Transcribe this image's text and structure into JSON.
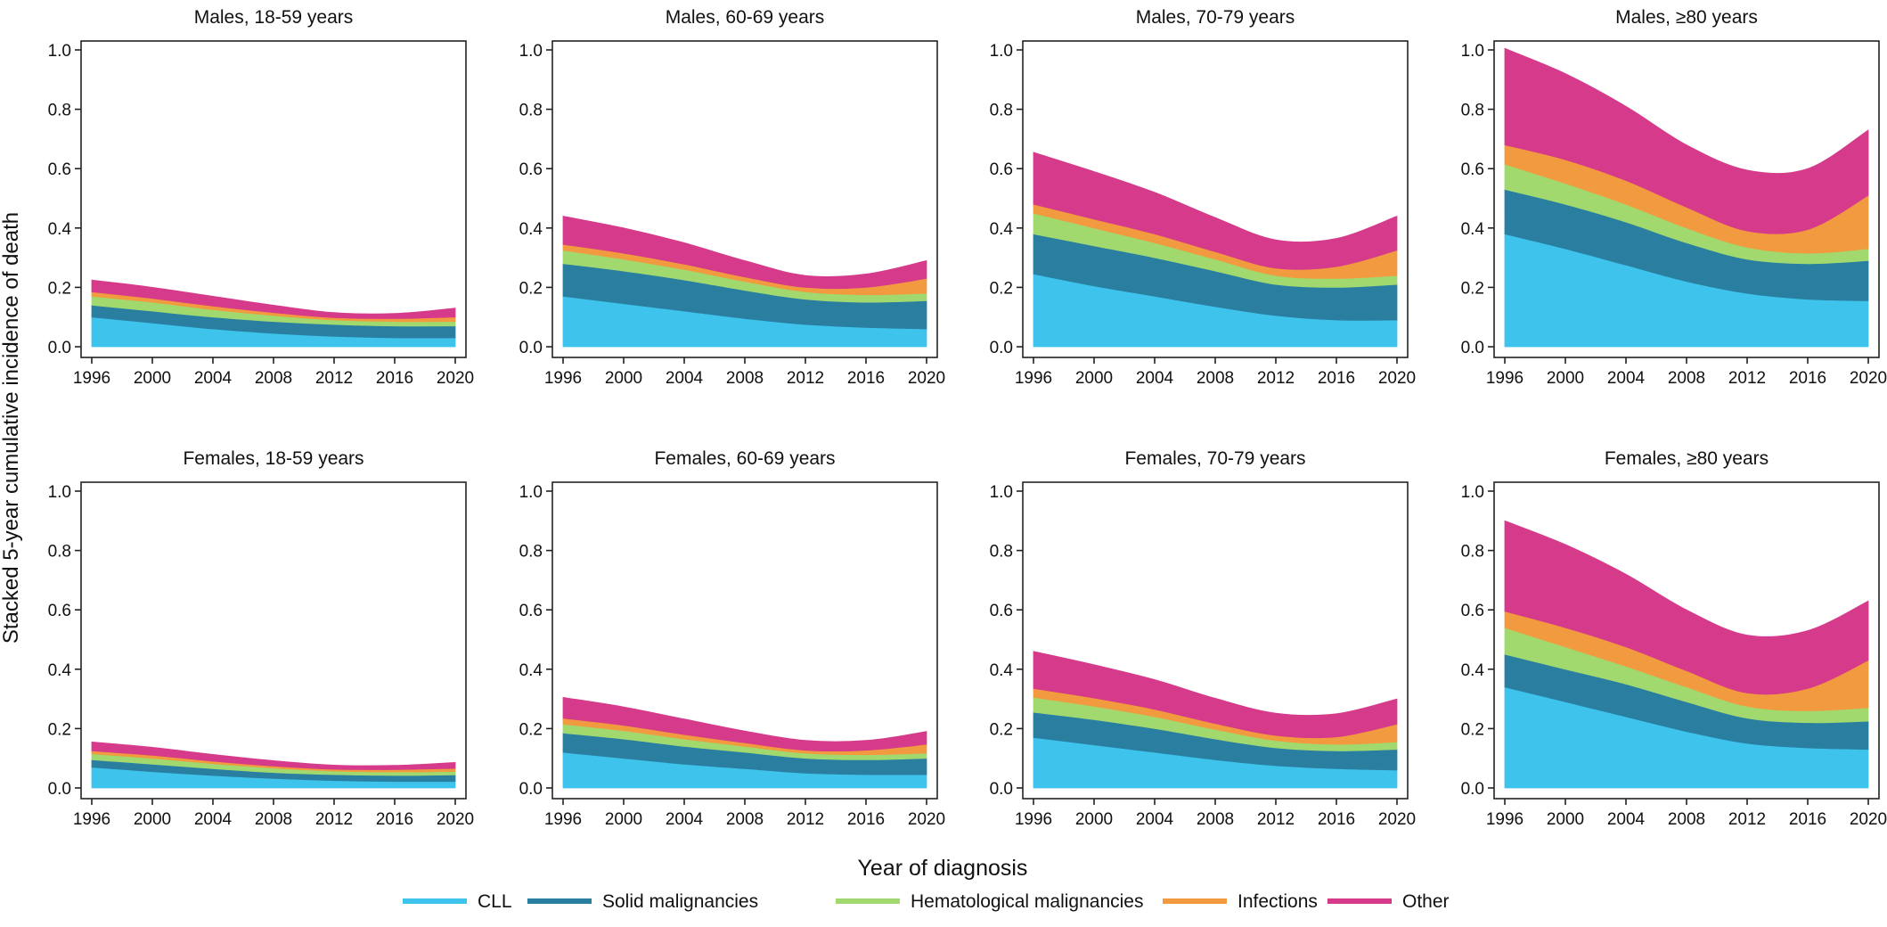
{
  "figure": {
    "ylabel": "Stacked 5-year cumulative incidence of death",
    "xlabel": "Year of diagnosis"
  },
  "legend": {
    "items": [
      {
        "label": "CLL",
        "color": "#3ec3ec"
      },
      {
        "label": "Solid malignancies",
        "color": "#2a7fa0"
      },
      {
        "label": "Hematological malignancies",
        "color": "#a2d96f"
      },
      {
        "label": "Infections",
        "color": "#f29a3f"
      },
      {
        "label": "Other",
        "color": "#d63a8a"
      }
    ]
  },
  "chart_data": [
    {
      "type": "area",
      "title": "Males, 18-59 years",
      "x": [
        1996,
        2000,
        2004,
        2008,
        2012,
        2016,
        2020
      ],
      "xticks": [
        "1996",
        "2000",
        "2004",
        "2008",
        "2012",
        "2016",
        "2020"
      ],
      "ylim": [
        0,
        1.0
      ],
      "yticks": [
        "0.0",
        "0.2",
        "0.4",
        "0.6",
        "0.8",
        "1.0"
      ],
      "series": [
        {
          "name": "CLL",
          "values": [
            0.1,
            0.08,
            0.06,
            0.045,
            0.035,
            0.03,
            0.03
          ]
        },
        {
          "name": "Solid malignancies",
          "values": [
            0.04,
            0.04,
            0.04,
            0.04,
            0.04,
            0.04,
            0.04
          ]
        },
        {
          "name": "Hematological malignancies",
          "values": [
            0.03,
            0.03,
            0.025,
            0.02,
            0.015,
            0.015,
            0.015
          ]
        },
        {
          "name": "Infections",
          "values": [
            0.015,
            0.013,
            0.012,
            0.01,
            0.008,
            0.01,
            0.015
          ]
        },
        {
          "name": "Other",
          "values": [
            0.04,
            0.037,
            0.033,
            0.025,
            0.017,
            0.017,
            0.03
          ]
        }
      ]
    },
    {
      "type": "area",
      "title": "Males, 60-69 years",
      "x": [
        1996,
        2000,
        2004,
        2008,
        2012,
        2016,
        2020
      ],
      "xticks": [
        "1996",
        "2000",
        "2004",
        "2008",
        "2012",
        "2016",
        "2020"
      ],
      "ylim": [
        0,
        1.0
      ],
      "yticks": [
        "0.0",
        "0.2",
        "0.4",
        "0.6",
        "0.8",
        "1.0"
      ],
      "series": [
        {
          "name": "CLL",
          "values": [
            0.17,
            0.145,
            0.12,
            0.095,
            0.075,
            0.065,
            0.06
          ]
        },
        {
          "name": "Solid malignancies",
          "values": [
            0.11,
            0.11,
            0.105,
            0.095,
            0.085,
            0.085,
            0.095
          ]
        },
        {
          "name": "Hematological malignancies",
          "values": [
            0.045,
            0.04,
            0.035,
            0.03,
            0.025,
            0.025,
            0.025
          ]
        },
        {
          "name": "Infections",
          "values": [
            0.02,
            0.02,
            0.018,
            0.015,
            0.015,
            0.025,
            0.05
          ]
        },
        {
          "name": "Other",
          "values": [
            0.095,
            0.085,
            0.072,
            0.055,
            0.04,
            0.045,
            0.06
          ]
        }
      ]
    },
    {
      "type": "area",
      "title": "Males, 70-79 years",
      "x": [
        1996,
        2000,
        2004,
        2008,
        2012,
        2016,
        2020
      ],
      "xticks": [
        "1996",
        "2000",
        "2004",
        "2008",
        "2012",
        "2016",
        "2020"
      ],
      "ylim": [
        0,
        1.0
      ],
      "yticks": [
        "0.0",
        "0.2",
        "0.4",
        "0.6",
        "0.8",
        "1.0"
      ],
      "series": [
        {
          "name": "CLL",
          "values": [
            0.245,
            0.205,
            0.17,
            0.135,
            0.105,
            0.09,
            0.09
          ]
        },
        {
          "name": "Solid malignancies",
          "values": [
            0.135,
            0.135,
            0.13,
            0.12,
            0.105,
            0.11,
            0.12
          ]
        },
        {
          "name": "Hematological malignancies",
          "values": [
            0.07,
            0.06,
            0.05,
            0.04,
            0.03,
            0.03,
            0.03
          ]
        },
        {
          "name": "Infections",
          "values": [
            0.03,
            0.03,
            0.03,
            0.025,
            0.025,
            0.04,
            0.085
          ]
        },
        {
          "name": "Other",
          "values": [
            0.175,
            0.16,
            0.14,
            0.115,
            0.095,
            0.095,
            0.115
          ]
        }
      ]
    },
    {
      "type": "area",
      "title": "Males, ≥80 years",
      "x": [
        1996,
        2000,
        2004,
        2008,
        2012,
        2016,
        2020
      ],
      "xticks": [
        "1996",
        "2000",
        "2004",
        "2008",
        "2012",
        "2016",
        "2020"
      ],
      "ylim": [
        0,
        1.0
      ],
      "yticks": [
        "0.0",
        "0.2",
        "0.4",
        "0.6",
        "0.8",
        "1.0"
      ],
      "series": [
        {
          "name": "CLL",
          "values": [
            0.38,
            0.33,
            0.275,
            0.22,
            0.18,
            0.16,
            0.155
          ]
        },
        {
          "name": "Solid malignancies",
          "values": [
            0.15,
            0.15,
            0.145,
            0.13,
            0.115,
            0.12,
            0.135
          ]
        },
        {
          "name": "Hematological malignancies",
          "values": [
            0.085,
            0.07,
            0.06,
            0.05,
            0.04,
            0.035,
            0.04
          ]
        },
        {
          "name": "Infections",
          "values": [
            0.065,
            0.08,
            0.08,
            0.07,
            0.055,
            0.08,
            0.18
          ]
        },
        {
          "name": "Other",
          "values": [
            0.325,
            0.29,
            0.25,
            0.21,
            0.205,
            0.205,
            0.22
          ]
        }
      ]
    },
    {
      "type": "area",
      "title": "Females, 18-59 years",
      "x": [
        1996,
        2000,
        2004,
        2008,
        2012,
        2016,
        2020
      ],
      "xticks": [
        "1996",
        "2000",
        "2004",
        "2008",
        "2012",
        "2016",
        "2020"
      ],
      "ylim": [
        0,
        1.0
      ],
      "yticks": [
        "0.0",
        "0.2",
        "0.4",
        "0.6",
        "0.8",
        "1.0"
      ],
      "series": [
        {
          "name": "CLL",
          "values": [
            0.07,
            0.055,
            0.042,
            0.032,
            0.025,
            0.022,
            0.022
          ]
        },
        {
          "name": "Solid malignancies",
          "values": [
            0.025,
            0.025,
            0.023,
            0.02,
            0.02,
            0.02,
            0.022
          ]
        },
        {
          "name": "Hematological malignancies",
          "values": [
            0.02,
            0.02,
            0.017,
            0.015,
            0.012,
            0.012,
            0.012
          ]
        },
        {
          "name": "Infections",
          "values": [
            0.01,
            0.01,
            0.008,
            0.007,
            0.006,
            0.008,
            0.01
          ]
        },
        {
          "name": "Other",
          "values": [
            0.03,
            0.027,
            0.023,
            0.018,
            0.014,
            0.014,
            0.02
          ]
        }
      ]
    },
    {
      "type": "area",
      "title": "Females, 60-69 years",
      "x": [
        1996,
        2000,
        2004,
        2008,
        2012,
        2016,
        2020
      ],
      "xticks": [
        "1996",
        "2000",
        "2004",
        "2008",
        "2012",
        "2016",
        "2020"
      ],
      "ylim": [
        0,
        1.0
      ],
      "yticks": [
        "0.0",
        "0.2",
        "0.4",
        "0.6",
        "0.8",
        "1.0"
      ],
      "series": [
        {
          "name": "CLL",
          "values": [
            0.12,
            0.1,
            0.08,
            0.065,
            0.05,
            0.045,
            0.045
          ]
        },
        {
          "name": "Solid malignancies",
          "values": [
            0.065,
            0.065,
            0.06,
            0.055,
            0.05,
            0.05,
            0.055
          ]
        },
        {
          "name": "Hematological malignancies",
          "values": [
            0.03,
            0.028,
            0.025,
            0.02,
            0.017,
            0.017,
            0.017
          ]
        },
        {
          "name": "Infections",
          "values": [
            0.02,
            0.018,
            0.015,
            0.012,
            0.01,
            0.015,
            0.03
          ]
        },
        {
          "name": "Other",
          "values": [
            0.07,
            0.062,
            0.052,
            0.04,
            0.033,
            0.033,
            0.043
          ]
        }
      ]
    },
    {
      "type": "area",
      "title": "Females, 70-79 years",
      "x": [
        1996,
        2000,
        2004,
        2008,
        2012,
        2016,
        2020
      ],
      "xticks": [
        "1996",
        "2000",
        "2004",
        "2008",
        "2012",
        "2016",
        "2020"
      ],
      "ylim": [
        0,
        1.0
      ],
      "yticks": [
        "0.0",
        "0.2",
        "0.4",
        "0.6",
        "0.8",
        "1.0"
      ],
      "series": [
        {
          "name": "CLL",
          "values": [
            0.17,
            0.145,
            0.12,
            0.095,
            0.075,
            0.065,
            0.06
          ]
        },
        {
          "name": "Solid malignancies",
          "values": [
            0.085,
            0.085,
            0.08,
            0.07,
            0.06,
            0.06,
            0.07
          ]
        },
        {
          "name": "Hematological malignancies",
          "values": [
            0.05,
            0.045,
            0.04,
            0.032,
            0.025,
            0.022,
            0.025
          ]
        },
        {
          "name": "Infections",
          "values": [
            0.03,
            0.028,
            0.025,
            0.02,
            0.017,
            0.025,
            0.06
          ]
        },
        {
          "name": "Other",
          "values": [
            0.125,
            0.112,
            0.1,
            0.085,
            0.075,
            0.078,
            0.085
          ]
        }
      ]
    },
    {
      "type": "area",
      "title": "Females, ≥80 years",
      "x": [
        1996,
        2000,
        2004,
        2008,
        2012,
        2016,
        2020
      ],
      "xticks": [
        "1996",
        "2000",
        "2004",
        "2008",
        "2012",
        "2016",
        "2020"
      ],
      "ylim": [
        0,
        1.0
      ],
      "yticks": [
        "0.0",
        "0.2",
        "0.4",
        "0.6",
        "0.8",
        "1.0"
      ],
      "series": [
        {
          "name": "CLL",
          "values": [
            0.34,
            0.29,
            0.24,
            0.19,
            0.15,
            0.135,
            0.13
          ]
        },
        {
          "name": "Solid malignancies",
          "values": [
            0.11,
            0.11,
            0.11,
            0.1,
            0.085,
            0.085,
            0.095
          ]
        },
        {
          "name": "Hematological malignancies",
          "values": [
            0.09,
            0.075,
            0.06,
            0.05,
            0.04,
            0.04,
            0.045
          ]
        },
        {
          "name": "Infections",
          "values": [
            0.055,
            0.065,
            0.065,
            0.055,
            0.045,
            0.075,
            0.16
          ]
        },
        {
          "name": "Other",
          "values": [
            0.305,
            0.28,
            0.245,
            0.205,
            0.195,
            0.195,
            0.2
          ]
        }
      ]
    }
  ]
}
